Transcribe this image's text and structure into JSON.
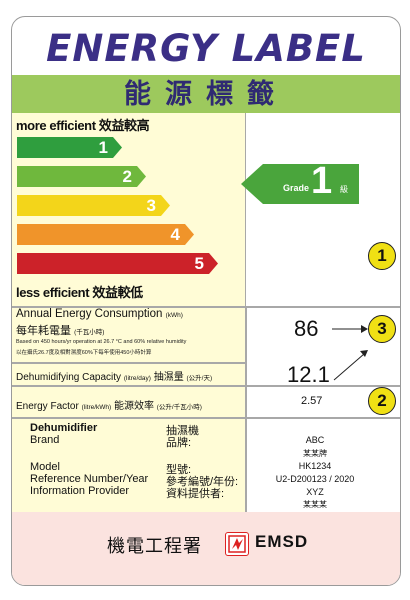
{
  "header": {
    "title": "ENERGY LABEL",
    "subtitle": "能源標籤"
  },
  "scale": {
    "more_efficient": "more efficient 效益較高",
    "less_efficient": "less efficient 效益較低",
    "bars": [
      {
        "label": "1",
        "color": "#2f9e3e"
      },
      {
        "label": "2",
        "color": "#6fb83d"
      },
      {
        "label": "3",
        "color": "#f3d51a"
      },
      {
        "label": "4",
        "color": "#f0942a"
      },
      {
        "label": "5",
        "color": "#cc2229"
      }
    ]
  },
  "grade": {
    "word": "Grade",
    "number": "1",
    "suffix": "級",
    "color": "#4aa53c"
  },
  "callouts": {
    "one": "1",
    "two": "2",
    "three": "3"
  },
  "consumption": {
    "label_en": "Annual Energy Consumption",
    "unit_en": "(kWh)",
    "label_zh": "每年耗電量",
    "unit_zh": "(千瓦小時)",
    "note_en": "Based on 450 hours/yr operation at 26.7 °C and 60% relative humidity",
    "note_zh": "以在攝氏26.7度及相對濕度60%下每年使用450小時計算",
    "value": "86"
  },
  "capacity": {
    "label_en": "Dehumidifying Capacity",
    "unit_en": "(litre/day)",
    "label_zh": "抽濕量",
    "unit_zh": "(公升/天)",
    "value": "12.1"
  },
  "energy_factor": {
    "label_en": "Energy Factor",
    "unit_en": "(litre/kWh)",
    "label_zh": "能源效率",
    "unit_zh": "(公升/千瓦小時)",
    "value": "2.57"
  },
  "product": {
    "type_en": "Dehumidifier",
    "type_zh": "抽濕機",
    "brand_en": "Brand",
    "brand_zh": "品牌:",
    "model_en": "Model",
    "model_zh": "型號:",
    "ref_en": "Reference Number/Year",
    "ref_zh": "參考編號/年份:",
    "info_en": "Information Provider",
    "info_zh": "資料提供者:",
    "brand_value": "ABC",
    "brand_value_zh": "某某牌",
    "model_value": "HK1234",
    "ref_value": "U2-D200123 / 2020",
    "info_value": "XYZ",
    "info_value_zh": "某某某"
  },
  "footer": {
    "dept_zh": "機電工程署",
    "dept_en": "EMSD"
  }
}
